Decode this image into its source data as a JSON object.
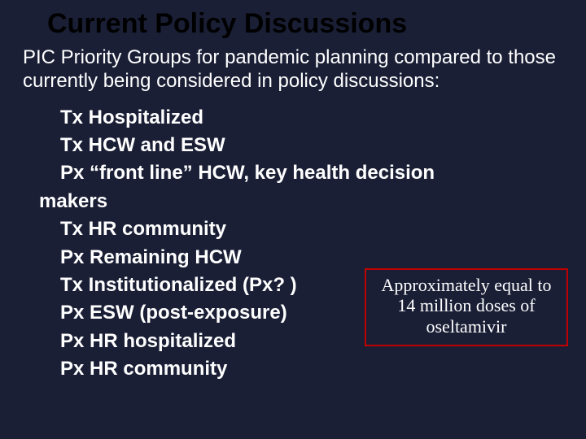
{
  "title": "Current Policy Discussions",
  "intro": "PIC Priority Groups for pandemic planning compared to those currently being considered in policy discussions:",
  "bullets": {
    "b0": {
      "icon": "✓",
      "text": "Tx Hospitalized"
    },
    "b1": {
      "icon": "✓",
      "text": "Tx HCW and ESW"
    },
    "b2": {
      "icon": "✓",
      "text": "Px “front line” HCW, key health decision"
    },
    "b2b": {
      "text": "makers"
    },
    "b3": {
      "icon": "✓",
      "text": "Tx HR community"
    },
    "b4": {
      "icon": "❑",
      "text": "Px Remaining HCW"
    },
    "b5": {
      "icon": "✓",
      "text": "Tx Institutionalized (Px? )"
    },
    "b6": {
      "icon": "✓",
      "text": "Px ESW (post-exposure)"
    },
    "b7": {
      "icon": "❑",
      "text": "Px HR hospitalized"
    },
    "b8": {
      "icon": "❑",
      "text": "Px HR community"
    }
  },
  "callout": "Approximately equal to 14 million doses of oseltamivir",
  "style": {
    "background_color": "#1a1f36",
    "title_color": "#000000",
    "body_text_color": "#ffffff",
    "callout_border": "#c00000",
    "title_fontsize": 34,
    "intro_fontsize": 24,
    "bullet_fontsize": 24,
    "callout_fontsize": 22
  }
}
